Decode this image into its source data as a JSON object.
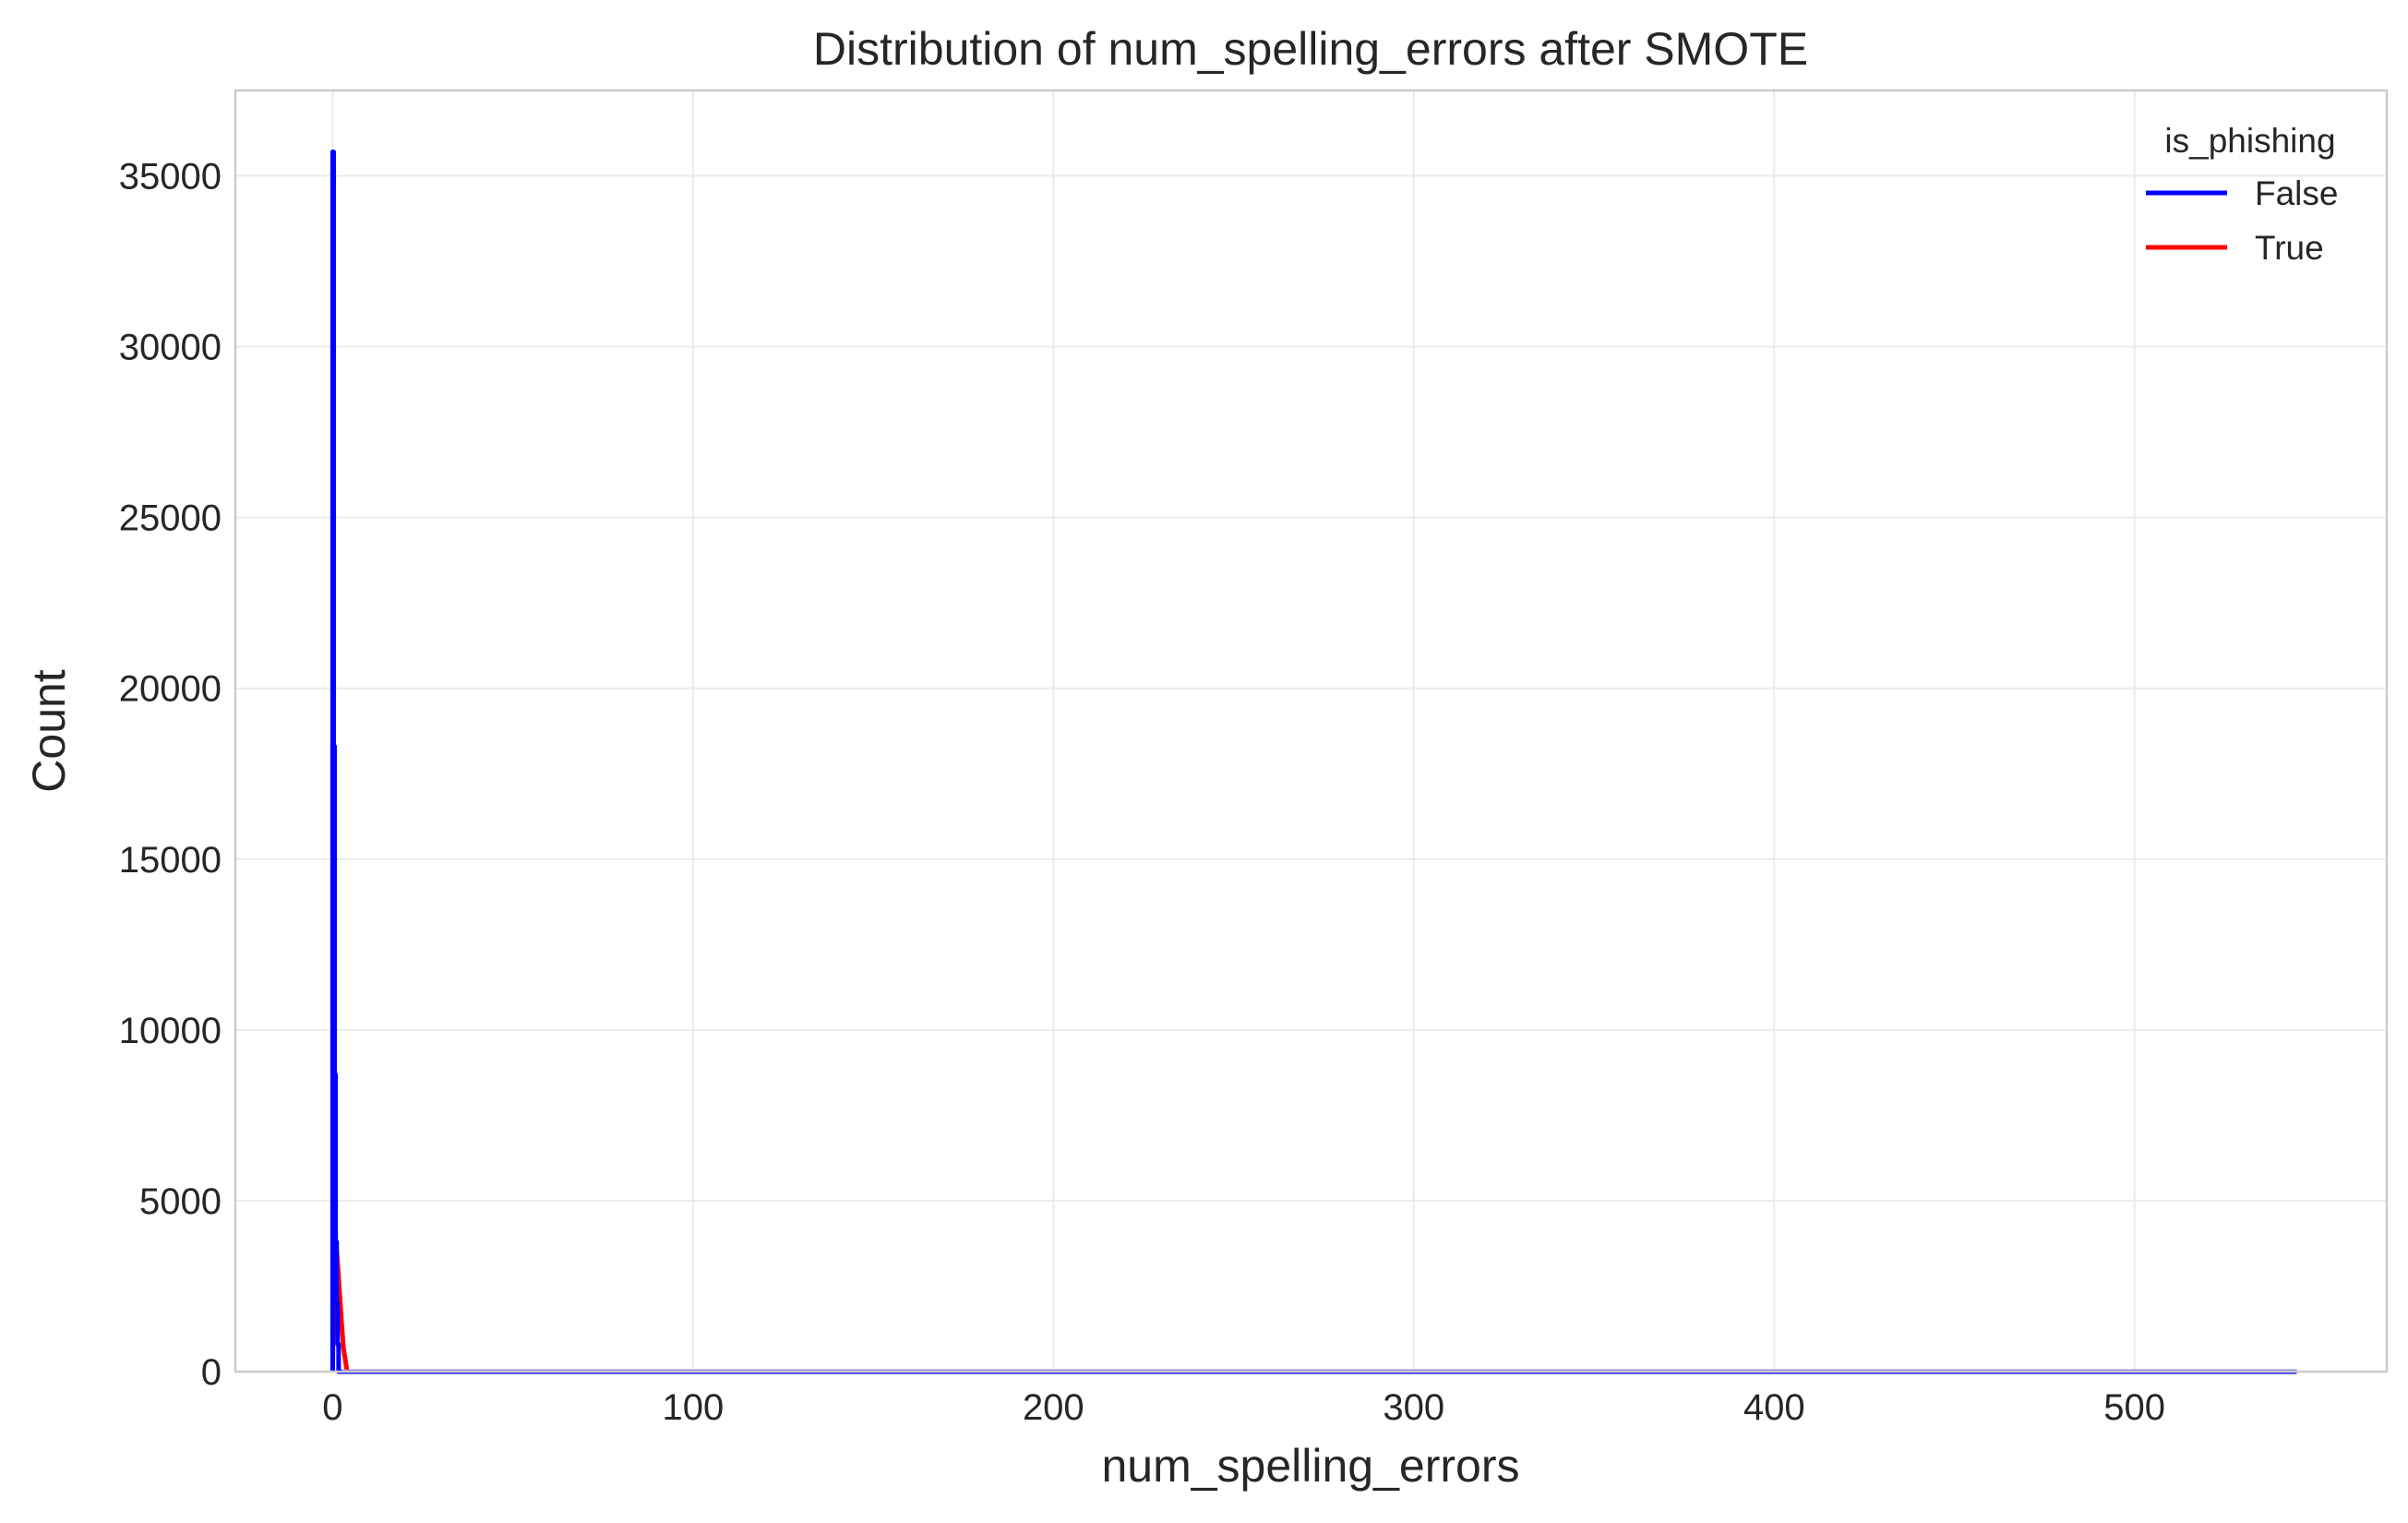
{
  "chart_data": {
    "type": "line",
    "title": "Distribution of num_spelling_errors after SMOTE",
    "xlabel": "num_spelling_errors",
    "ylabel": "Count",
    "xlim": [
      -27,
      570
    ],
    "ylim": [
      0,
      37500
    ],
    "xticks": [
      0,
      100,
      200,
      300,
      400,
      500
    ],
    "yticks": [
      0,
      5000,
      10000,
      15000,
      20000,
      25000,
      30000,
      35000
    ],
    "grid": true,
    "legend": {
      "title": "is_phishing",
      "placement": "top-right"
    },
    "series": [
      {
        "name": "False",
        "color": "#0000ff",
        "x": [
          0,
          0,
          0.27,
          0.27,
          0.55,
          0.55,
          0.82,
          0.82,
          1.1,
          1.1,
          1.37,
          1.37,
          1.65,
          1.65,
          2.5,
          100,
          200,
          300,
          400,
          500,
          545
        ],
        "y": [
          0,
          35700,
          35700,
          18300,
          18300,
          8700,
          8700,
          3800,
          3800,
          2000,
          2000,
          800,
          800,
          0,
          0,
          0,
          0,
          0,
          0,
          0,
          0
        ]
      },
      {
        "name": "True",
        "color": "#ff0000",
        "x": [
          0,
          0.5,
          1.0,
          1.5,
          2.0,
          2.5,
          3.0,
          4.0,
          100,
          200,
          300,
          400,
          500,
          545
        ],
        "y": [
          0,
          4200,
          3700,
          3000,
          2200,
          1400,
          700,
          0,
          0,
          0,
          0,
          0,
          0,
          0
        ]
      }
    ]
  }
}
